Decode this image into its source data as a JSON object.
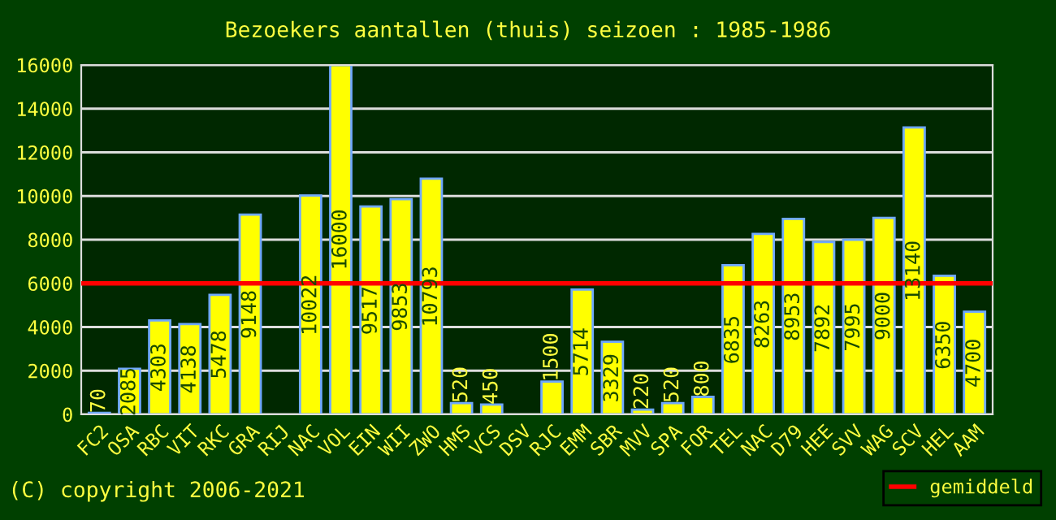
{
  "chart_data": {
    "type": "bar",
    "title": "Bezoekers aantallen (thuis) seizoen : 1985-1986",
    "categories": [
      "FC2",
      "OSA",
      "RBC",
      "VIT",
      "RKC",
      "GRA",
      "RIJ",
      "NAC",
      "VOL",
      "EIN",
      "WII",
      "ZWO",
      "HMS",
      "VCS",
      "DSV",
      "RJC",
      "EMM",
      "SBR",
      "MVV",
      "SPA",
      "FOR",
      "TEL",
      "NAC",
      "D79",
      "HEE",
      "SVV",
      "WAG",
      "SCV",
      "HEL",
      "AAM"
    ],
    "values": [
      70,
      2085,
      4303,
      4138,
      5478,
      9148,
      null,
      10022,
      16000,
      9517,
      9853,
      10793,
      520,
      450,
      null,
      1500,
      5714,
      3329,
      220,
      520,
      800,
      6835,
      8263,
      8953,
      7892,
      7995,
      9000,
      13140,
      6350,
      4700
    ],
    "color": "#ffff00",
    "data_labels": true,
    "ylim": [
      0,
      16000
    ],
    "yticks": [
      0,
      2000,
      4000,
      6000,
      8000,
      10000,
      12000,
      14000,
      16000
    ],
    "grid": "y",
    "ref_lines": [
      {
        "axis": "y",
        "value": 6000,
        "label": "gemiddeld",
        "color": "#ff0000"
      }
    ],
    "legend": "bottom right",
    "annotations": [
      "(C) copyright 2006-2021"
    ]
  }
}
